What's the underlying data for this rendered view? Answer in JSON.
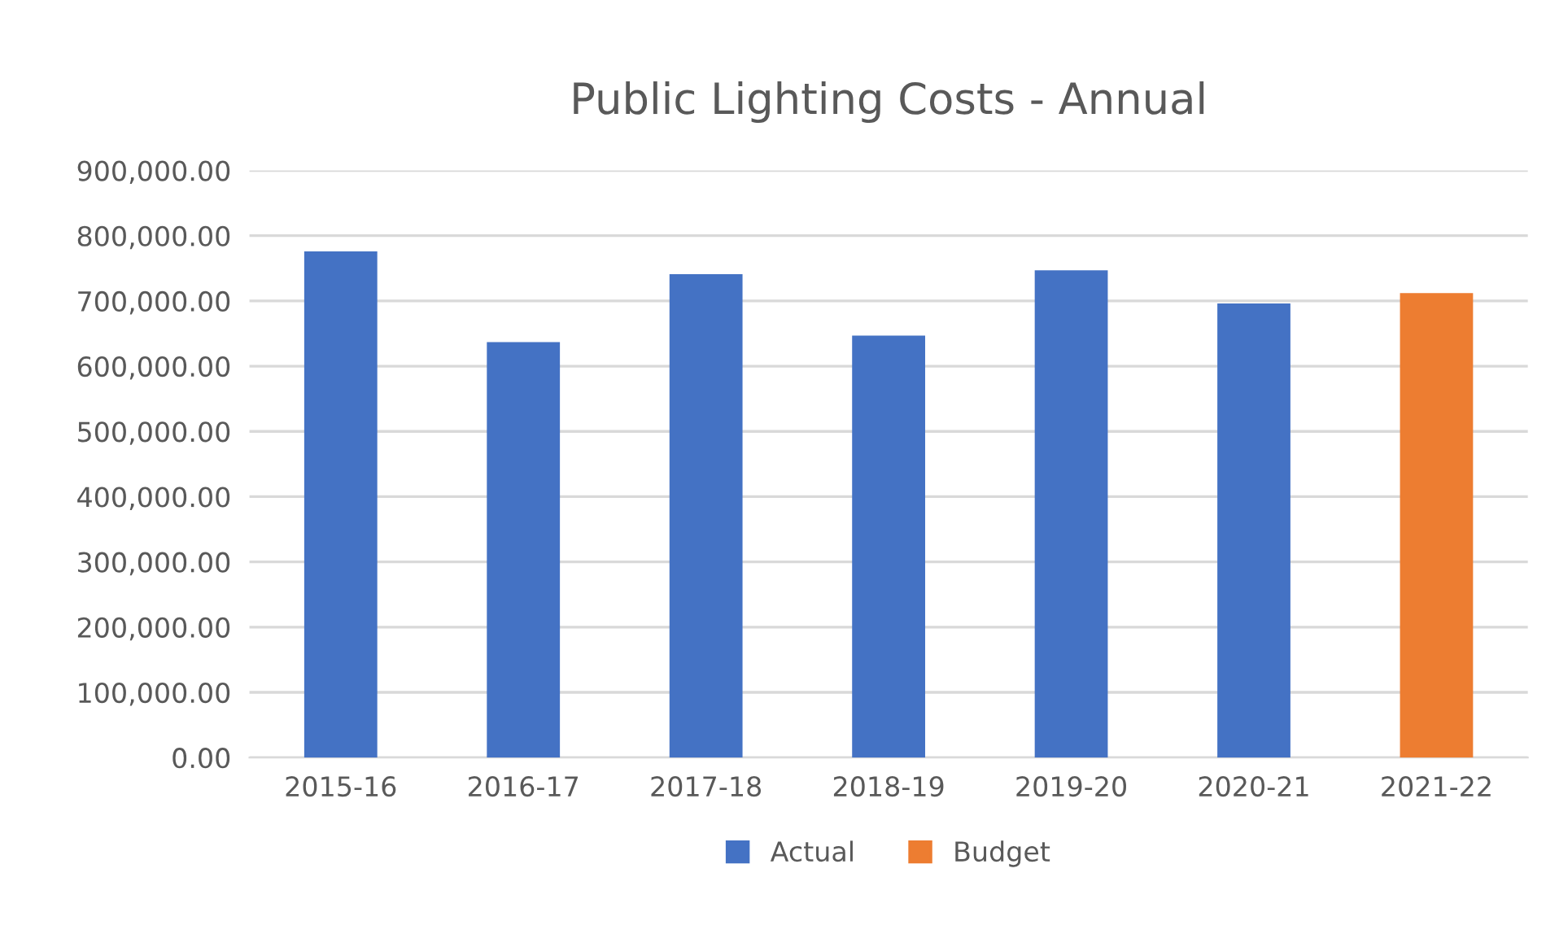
{
  "chart_data": {
    "type": "bar",
    "title": "Public Lighting Costs - Annual",
    "categories": [
      "2015-16",
      "2016-17",
      "2017-18",
      "2018-19",
      "2019-20",
      "2020-21",
      "2021-22"
    ],
    "series": [
      {
        "name": "Actual",
        "color": "#4472c4",
        "values": [
          776000,
          637000,
          741000,
          647000,
          747000,
          696000,
          null
        ]
      },
      {
        "name": "Budget",
        "color": "#ed7d31",
        "values": [
          null,
          null,
          null,
          null,
          null,
          null,
          712000
        ]
      }
    ],
    "ylim": [
      0,
      900000
    ],
    "yticks": [
      {
        "value": 0,
        "label": "0.00"
      },
      {
        "value": 100000,
        "label": "100,000.00"
      },
      {
        "value": 200000,
        "label": "200,000.00"
      },
      {
        "value": 300000,
        "label": "300,000.00"
      },
      {
        "value": 400000,
        "label": "400,000.00"
      },
      {
        "value": 500000,
        "label": "500,000.00"
      },
      {
        "value": 600000,
        "label": "600,000.00"
      },
      {
        "value": 700000,
        "label": "700,000.00"
      },
      {
        "value": 800000,
        "label": "800,000.00"
      },
      {
        "value": 900000,
        "label": "900,000.00"
      }
    ],
    "grid": "y",
    "legend": "bottom"
  }
}
